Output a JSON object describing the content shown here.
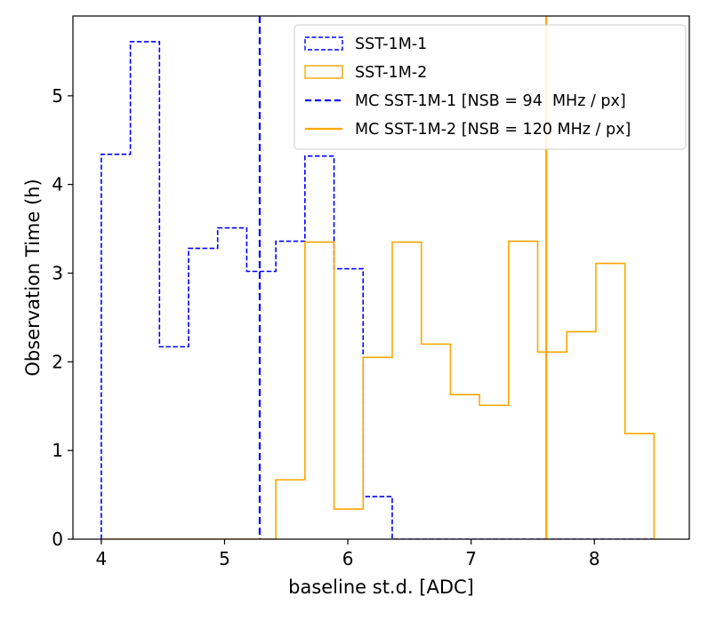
{
  "chart_data": {
    "type": "histogram",
    "title": "",
    "xlabel": "baseline st.d. [ADC]",
    "ylabel": "Observation Time (h)",
    "xlim": [
      3.77,
      8.77
    ],
    "ylim": [
      0,
      5.9
    ],
    "xticks": [
      4,
      5,
      6,
      7,
      8
    ],
    "yticks": [
      0,
      1,
      2,
      3,
      4,
      5
    ],
    "bin_edges": [
      4.0,
      4.236,
      4.472,
      4.708,
      4.944,
      5.18,
      5.416,
      5.652,
      5.888,
      6.124,
      6.36,
      6.596,
      6.832,
      7.068,
      7.304,
      7.54,
      7.776,
      8.012,
      8.248,
      8.484
    ],
    "series": [
      {
        "name": "SST-1M-1",
        "color": "#0000ff",
        "linestyle": "dashed",
        "values": [
          4.34,
          5.61,
          2.17,
          3.28,
          3.51,
          3.02,
          3.36,
          4.32,
          3.05,
          0.48,
          0,
          0,
          0,
          0,
          0,
          0,
          0,
          0,
          0
        ]
      },
      {
        "name": "SST-1M-2",
        "color": "#ffa500",
        "linestyle": "solid",
        "values": [
          0,
          0,
          0,
          0,
          0,
          0,
          0.67,
          3.35,
          0.34,
          2.05,
          3.35,
          2.2,
          1.63,
          1.51,
          3.36,
          2.11,
          2.34,
          3.11,
          1.19
        ]
      }
    ],
    "vlines": [
      {
        "name": "MC SST-1M-1 [NSB = 94  MHz / px]",
        "x": 5.285,
        "color": "#0000ff",
        "linestyle": "dashed"
      },
      {
        "name": "MC SST-1M-2 [NSB = 120 MHz / px]",
        "x": 7.61,
        "color": "#ffa500",
        "linestyle": "solid"
      }
    ],
    "legend_position": "top-right"
  }
}
